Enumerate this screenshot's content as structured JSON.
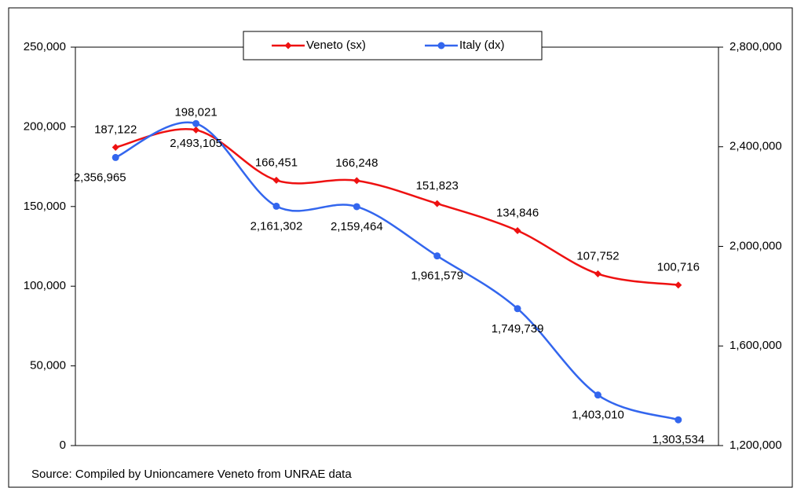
{
  "chart_data": {
    "type": "line",
    "categories": [
      null,
      null,
      null,
      null,
      null,
      null,
      null,
      null
    ],
    "series": [
      {
        "name": "Veneto (sx)",
        "color": "#ee1111",
        "marker": "diamond",
        "axis": "y",
        "values": [
          187122,
          198021,
          166451,
          166248,
          151823,
          134846,
          107752,
          100716
        ],
        "value_labels": [
          "187,122",
          "198,021",
          "166,451",
          "166,248",
          "151,823",
          "134,846",
          "107,752",
          "100,716"
        ]
      },
      {
        "name": "Italy (dx)",
        "color": "#3366ee",
        "marker": "circle",
        "axis": "y2",
        "values": [
          2356965,
          2493105,
          2161302,
          2159464,
          1961579,
          1749739,
          1403010,
          1303534
        ],
        "value_labels": [
          "2,356,965",
          "2,493,105",
          "2,161,302",
          "2,159,464",
          "1,961,579",
          "1,749,739",
          "1,403,010",
          "1,303,534"
        ]
      }
    ],
    "ylim": [
      0,
      250000
    ],
    "yticks": [
      0,
      {
        "value": 50000,
        "label": "50,000"
      },
      {
        "value": 100000,
        "label": "100,000"
      },
      {
        "value": 150000,
        "label": "150,000"
      },
      {
        "value": 200000,
        "label": "200,000"
      },
      {
        "value": 250000,
        "label": "250,000"
      }
    ],
    "y2lim": [
      1200000,
      2800000
    ],
    "y2ticks": [
      {
        "value": 1200000,
        "label": "1,200,000"
      },
      {
        "value": 1600000,
        "label": "1,600,000"
      },
      {
        "value": 2000000,
        "label": "2,000,000"
      },
      {
        "value": 2400000,
        "label": "2,400,000"
      },
      {
        "value": 2800000,
        "label": "2,800,000"
      }
    ],
    "grid": false,
    "smooth": true,
    "legend": "top",
    "source": "Source: Compiled by Unioncamere Veneto from UNRAE data"
  }
}
